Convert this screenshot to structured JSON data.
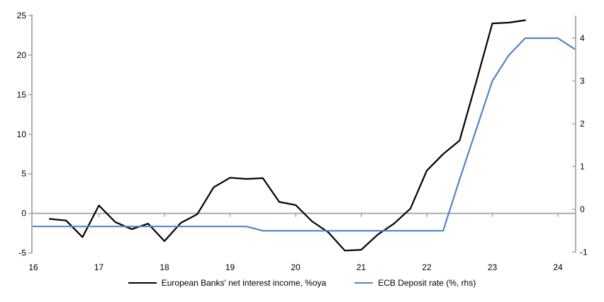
{
  "chart_data": {
    "type": "line",
    "title": "",
    "x_axis": {
      "tick_labels": [
        "16",
        "17",
        "18",
        "19",
        "20",
        "21",
        "22",
        "23",
        "24"
      ],
      "tick_values": [
        16,
        17,
        18,
        19,
        20,
        21,
        22,
        23,
        24
      ],
      "range": [
        16,
        24.27
      ]
    },
    "y_axis_left": {
      "tick_values": [
        -5,
        0,
        5,
        10,
        15,
        20,
        25
      ],
      "range": [
        -5.1,
        25.2
      ]
    },
    "y_axis_right": {
      "tick_values": [
        -1,
        0,
        1,
        2,
        3,
        4
      ],
      "range": [
        -1.0,
        4.55
      ]
    },
    "grid": "zero-line-only",
    "legend_position": "bottom-center",
    "axis_color": "#a6a6a6",
    "series": [
      {
        "name": "European Banks' net interest income, %oya",
        "axis": "left",
        "color": "#000000",
        "points": [
          [
            16.25,
            -0.7
          ],
          [
            16.5,
            -0.9
          ],
          [
            16.75,
            -3.0
          ],
          [
            17.0,
            1.0
          ],
          [
            17.25,
            -1.1
          ],
          [
            17.5,
            -2.0
          ],
          [
            17.75,
            -1.3
          ],
          [
            18.0,
            -3.5
          ],
          [
            18.25,
            -1.2
          ],
          [
            18.5,
            -0.1
          ],
          [
            18.75,
            3.3
          ],
          [
            19.0,
            4.5
          ],
          [
            19.25,
            4.35
          ],
          [
            19.5,
            4.45
          ],
          [
            19.75,
            1.45
          ],
          [
            20.0,
            1.05
          ],
          [
            20.25,
            -1.0
          ],
          [
            20.5,
            -2.4
          ],
          [
            20.75,
            -4.7
          ],
          [
            21.0,
            -4.6
          ],
          [
            21.25,
            -2.7
          ],
          [
            21.5,
            -1.3
          ],
          [
            21.75,
            0.6
          ],
          [
            22.0,
            5.4
          ],
          [
            22.25,
            7.5
          ],
          [
            22.5,
            9.2
          ],
          [
            22.75,
            16.5
          ],
          [
            23.0,
            24.0
          ],
          [
            23.25,
            24.1
          ],
          [
            23.5,
            24.4
          ]
        ]
      },
      {
        "name": "ECB Deposit rate (%, rhs)",
        "axis": "right",
        "color": "#4f87c5",
        "points": [
          [
            16.0,
            -0.4
          ],
          [
            19.25,
            -0.4
          ],
          [
            19.5,
            -0.5
          ],
          [
            22.25,
            -0.5
          ],
          [
            22.5,
            0.7
          ],
          [
            22.75,
            1.85
          ],
          [
            23.0,
            3.0
          ],
          [
            23.25,
            3.6
          ],
          [
            23.5,
            4.0
          ],
          [
            24.0,
            4.0
          ],
          [
            24.25,
            3.75
          ]
        ]
      }
    ]
  }
}
